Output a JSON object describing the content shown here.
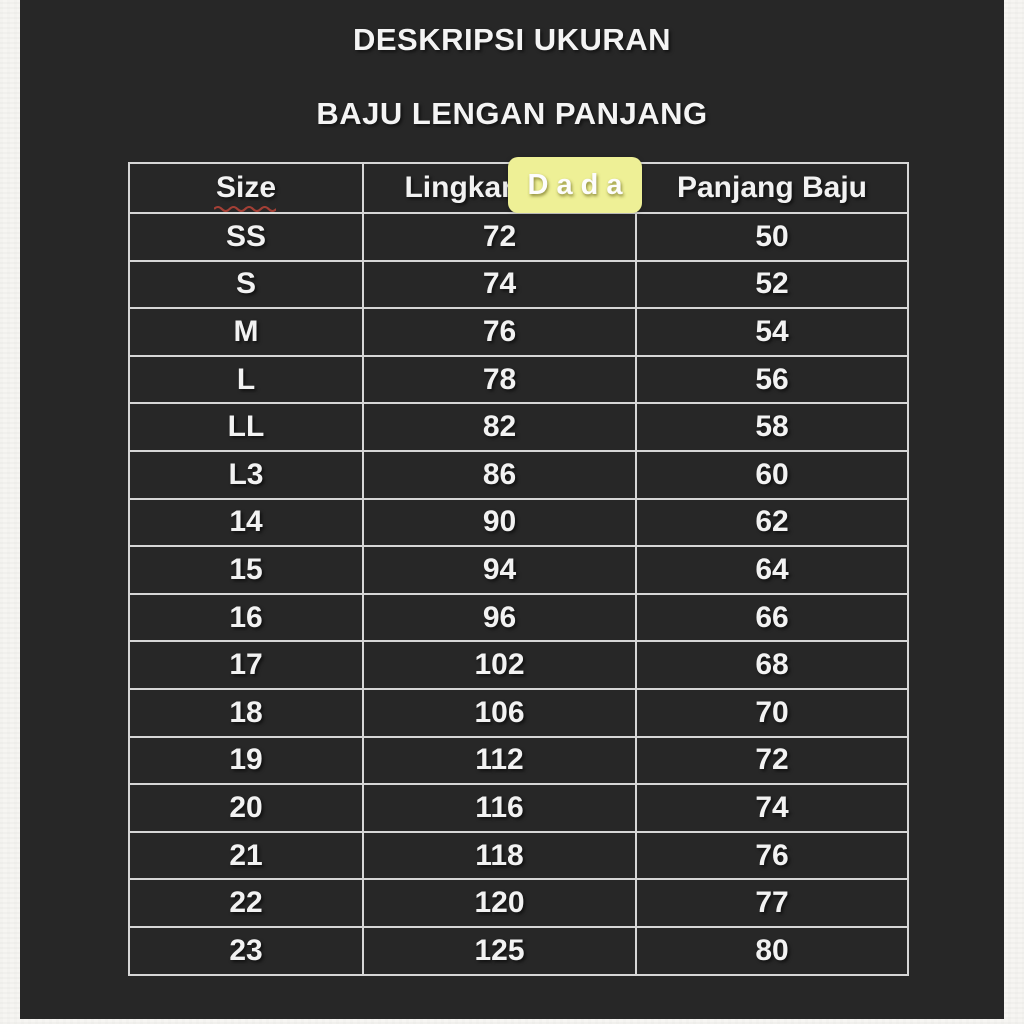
{
  "page": {
    "title": "DESKRIPSI UKURAN",
    "subtitle": "BAJU LENGAN PANJANG"
  },
  "size_table": {
    "columns": [
      "Size",
      "Lingkar Dada",
      "Panjang Baju"
    ],
    "rows": [
      [
        "SS",
        "72",
        "50"
      ],
      [
        "S",
        "74",
        "52"
      ],
      [
        "M",
        "76",
        "54"
      ],
      [
        "L",
        "78",
        "56"
      ],
      [
        "LL",
        "82",
        "58"
      ],
      [
        "L3",
        "86",
        "60"
      ],
      [
        "14",
        "90",
        "62"
      ],
      [
        "15",
        "94",
        "64"
      ],
      [
        "16",
        "96",
        "66"
      ],
      [
        "17",
        "102",
        "68"
      ],
      [
        "18",
        "106",
        "70"
      ],
      [
        "19",
        "112",
        "72"
      ],
      [
        "20",
        "116",
        "74"
      ],
      [
        "21",
        "118",
        "76"
      ],
      [
        "22",
        "120",
        "77"
      ],
      [
        "23",
        "125",
        "80"
      ]
    ]
  },
  "highlight_overlay": {
    "text": "D a d a",
    "background_color": "#eef096"
  },
  "colors": {
    "panel_background": "#272727",
    "page_background": "#f6f5f2",
    "table_border": "#d6d6d6",
    "table_text": "#f2f2f2",
    "spellcheck_underline": "#a33f35"
  }
}
